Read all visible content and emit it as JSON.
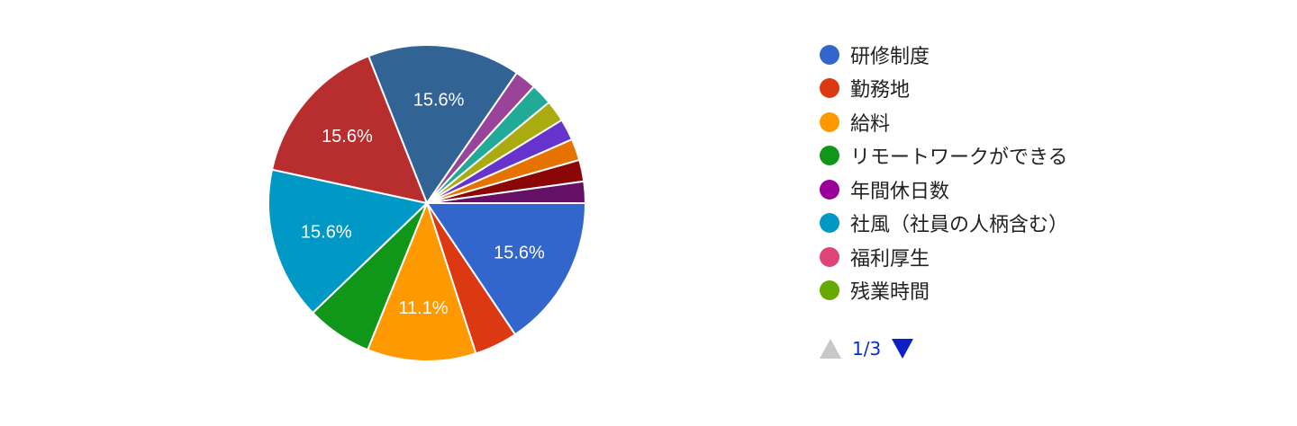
{
  "chart_data": {
    "type": "pie",
    "slices": [
      {
        "label": "研修制度",
        "value": 15.6,
        "color": "#3366cc",
        "data_label": "15.6%"
      },
      {
        "label": "勤務地",
        "value": 4.4,
        "color": "#dc3912",
        "data_label": ""
      },
      {
        "label": "給料",
        "value": 11.1,
        "color": "#ff9900",
        "data_label": "11.1%"
      },
      {
        "label": "リモートワークができる",
        "value": 6.7,
        "color": "#109618",
        "data_label": ""
      },
      {
        "label": "社風（社員の人柄含む）",
        "value": 15.6,
        "color": "#0099c6",
        "data_label": "15.6%"
      },
      {
        "label": "",
        "value": 15.6,
        "color": "#b82e2e",
        "data_label": "15.6%"
      },
      {
        "label": "",
        "value": 15.6,
        "color": "#316395",
        "data_label": "15.6%"
      },
      {
        "label": "",
        "value": 2.2,
        "color": "#994499",
        "data_label": ""
      },
      {
        "label": "",
        "value": 2.2,
        "color": "#22aa99",
        "data_label": ""
      },
      {
        "label": "",
        "value": 2.2,
        "color": "#aaaa11",
        "data_label": ""
      },
      {
        "label": "",
        "value": 2.2,
        "color": "#6633cc",
        "data_label": ""
      },
      {
        "label": "",
        "value": 2.2,
        "color": "#e67300",
        "data_label": ""
      },
      {
        "label": "",
        "value": 2.2,
        "color": "#8b0707",
        "data_label": ""
      },
      {
        "label": "",
        "value": 2.2,
        "color": "#651067",
        "data_label": ""
      }
    ]
  },
  "legend": {
    "items": [
      {
        "label": "研修制度",
        "color": "#3366cc"
      },
      {
        "label": "勤務地",
        "color": "#dc3912"
      },
      {
        "label": "給料",
        "color": "#ff9900"
      },
      {
        "label": "リモートワークができる",
        "color": "#109618"
      },
      {
        "label": "年間休日数",
        "color": "#990099"
      },
      {
        "label": "社風（社員の人柄含む）",
        "color": "#0099c6"
      },
      {
        "label": "福利厚生",
        "color": "#dd4477"
      },
      {
        "label": "残業時間",
        "color": "#66aa00"
      }
    ]
  },
  "pager": {
    "text": "1/3"
  }
}
